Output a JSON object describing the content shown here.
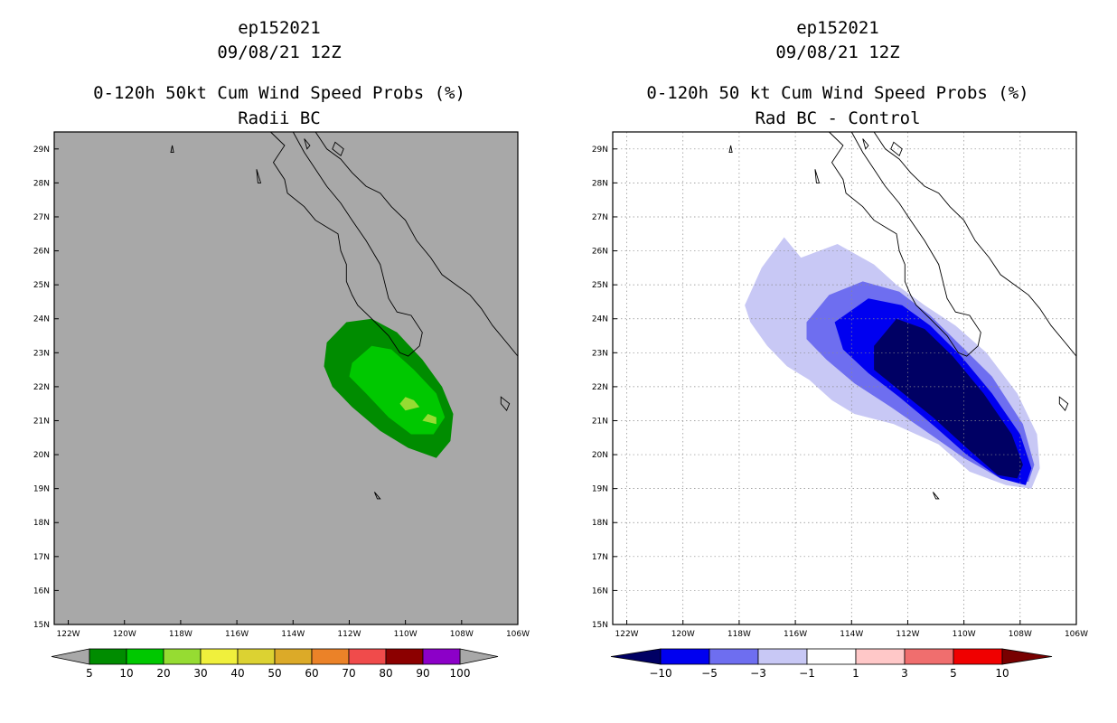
{
  "panels": [
    {
      "storm_id": "ep152021",
      "datetime": "09/08/21 12Z",
      "title": "0-120h 50kt Cum Wind Speed Probs (%)",
      "subtitle": "Radii BC",
      "background": "#a8a8a8",
      "gridlines": false,
      "lat_labels": [
        "29N",
        "28N",
        "27N",
        "26N",
        "25N",
        "24N",
        "23N",
        "22N",
        "21N",
        "20N",
        "19N",
        "18N",
        "17N",
        "16N",
        "15N"
      ],
      "lon_labels": [
        "122W",
        "120W",
        "118W",
        "116W",
        "114W",
        "112W",
        "110W",
        "108W",
        "106W"
      ],
      "colorbar": {
        "labels": [
          "5",
          "10",
          "20",
          "30",
          "40",
          "50",
          "60",
          "70",
          "80",
          "90",
          "100"
        ],
        "colors": [
          "#008c00",
          "#00c800",
          "#96dc32",
          "#f0f03c",
          "#dcd232",
          "#dcaa28",
          "#eb8228",
          "#f04b4b",
          "#8c0000",
          "#8c00c8"
        ],
        "end_arrow_color": "#a8a8a8"
      }
    },
    {
      "storm_id": "ep152021",
      "datetime": "09/08/21 12Z",
      "title": "0-120h 50 kt Cum Wind Speed Probs (%)",
      "subtitle": "Rad BC - Control",
      "background": "#ffffff",
      "gridlines": true,
      "lat_labels": [
        "29N",
        "28N",
        "27N",
        "26N",
        "25N",
        "24N",
        "23N",
        "22N",
        "21N",
        "20N",
        "19N",
        "18N",
        "17N",
        "16N",
        "15N"
      ],
      "lon_labels": [
        "122W",
        "120W",
        "118W",
        "116W",
        "114W",
        "112W",
        "110W",
        "108W",
        "106W"
      ],
      "colorbar": {
        "labels": [
          "−10",
          "−5",
          "−3",
          "−1",
          "1",
          "3",
          "5",
          "10"
        ],
        "colors": [
          "#000064",
          "#0000f0",
          "#6e6ef0",
          "#c8c8f5",
          "#ffffff",
          "#ffc8c8",
          "#f06e6e",
          "#f00000",
          "#780000"
        ]
      }
    }
  ],
  "map_data": {
    "lon_range": [
      -122.5,
      -106
    ],
    "lat_range": [
      15,
      29.5
    ],
    "left_contours": [
      {
        "level": "5-10%",
        "color": "#008c00",
        "poly": [
          [
            -112.8,
            23.3
          ],
          [
            -112.1,
            23.9
          ],
          [
            -111.2,
            24.0
          ],
          [
            -110.3,
            23.6
          ],
          [
            -109.4,
            22.8
          ],
          [
            -108.7,
            22.0
          ],
          [
            -108.3,
            21.2
          ],
          [
            -108.4,
            20.4
          ],
          [
            -108.9,
            19.9
          ],
          [
            -109.9,
            20.2
          ],
          [
            -110.9,
            20.7
          ],
          [
            -111.9,
            21.4
          ],
          [
            -112.6,
            22.0
          ],
          [
            -112.9,
            22.6
          ]
        ]
      },
      {
        "level": "10-20%",
        "color": "#00c800",
        "poly": [
          [
            -111.9,
            22.7
          ],
          [
            -111.2,
            23.2
          ],
          [
            -110.5,
            23.1
          ],
          [
            -109.7,
            22.5
          ],
          [
            -108.9,
            21.8
          ],
          [
            -108.6,
            21.1
          ],
          [
            -109.0,
            20.6
          ],
          [
            -109.8,
            20.6
          ],
          [
            -110.6,
            21.1
          ],
          [
            -111.4,
            21.8
          ],
          [
            -112.0,
            22.3
          ]
        ]
      },
      {
        "level": "20-30%",
        "color": "#96dc32",
        "poly": [
          [
            -110.0,
            21.7
          ],
          [
            -109.7,
            21.6
          ],
          [
            -109.5,
            21.4
          ],
          [
            -110.0,
            21.3
          ],
          [
            -110.2,
            21.5
          ]
        ]
      },
      {
        "level": "20-30%",
        "color": "#96dc32",
        "poly": [
          [
            -109.2,
            21.2
          ],
          [
            -108.9,
            21.1
          ],
          [
            -108.9,
            20.9
          ],
          [
            -109.4,
            21.0
          ]
        ]
      }
    ],
    "right_contours": [
      {
        "level": "-3 to -1",
        "color": "#c8c8f5",
        "poly": [
          [
            -117.8,
            24.4
          ],
          [
            -117.2,
            25.5
          ],
          [
            -116.4,
            26.4
          ],
          [
            -115.8,
            25.8
          ],
          [
            -114.5,
            26.2
          ],
          [
            -113.2,
            25.6
          ],
          [
            -112.4,
            25.0
          ],
          [
            -111.4,
            24.4
          ],
          [
            -110.3,
            23.8
          ],
          [
            -109.2,
            23.0
          ],
          [
            -108.1,
            21.8
          ],
          [
            -107.4,
            20.6
          ],
          [
            -107.3,
            19.6
          ],
          [
            -107.6,
            19.0
          ],
          [
            -108.5,
            19.1
          ],
          [
            -109.8,
            19.5
          ],
          [
            -110.9,
            20.3
          ],
          [
            -112.5,
            20.9
          ],
          [
            -113.9,
            21.2
          ],
          [
            -114.7,
            21.6
          ],
          [
            -115.5,
            22.2
          ],
          [
            -116.3,
            22.6
          ],
          [
            -117.0,
            23.2
          ],
          [
            -117.6,
            23.9
          ]
        ]
      },
      {
        "level": "-5 to -3",
        "color": "#6e6ef0",
        "poly": [
          [
            -115.6,
            23.9
          ],
          [
            -114.8,
            24.7
          ],
          [
            -113.6,
            25.1
          ],
          [
            -112.3,
            24.8
          ],
          [
            -111.2,
            24.1
          ],
          [
            -110.1,
            23.2
          ],
          [
            -109.0,
            22.3
          ],
          [
            -107.9,
            20.9
          ],
          [
            -107.5,
            19.7
          ],
          [
            -107.7,
            19.2
          ],
          [
            -108.7,
            19.3
          ],
          [
            -110.0,
            19.9
          ],
          [
            -111.2,
            20.6
          ],
          [
            -112.6,
            21.4
          ],
          [
            -113.9,
            22.1
          ],
          [
            -114.9,
            22.8
          ],
          [
            -115.6,
            23.4
          ]
        ]
      },
      {
        "level": "-10 to -5",
        "color": "#0000f0",
        "poly": [
          [
            -114.6,
            23.9
          ],
          [
            -113.4,
            24.6
          ],
          [
            -112.2,
            24.4
          ],
          [
            -111.2,
            23.8
          ],
          [
            -110.1,
            22.9
          ],
          [
            -109.0,
            21.8
          ],
          [
            -108.0,
            20.6
          ],
          [
            -107.6,
            19.6
          ],
          [
            -107.8,
            19.1
          ],
          [
            -108.7,
            19.3
          ],
          [
            -109.9,
            20.0
          ],
          [
            -111.0,
            20.8
          ],
          [
            -112.3,
            21.7
          ],
          [
            -113.4,
            22.4
          ],
          [
            -114.3,
            23.1
          ]
        ]
      },
      {
        "level": "< -10",
        "color": "#000064",
        "poly": [
          [
            -113.2,
            23.2
          ],
          [
            -112.4,
            24.0
          ],
          [
            -111.4,
            23.7
          ],
          [
            -110.4,
            22.9
          ],
          [
            -109.3,
            21.8
          ],
          [
            -108.3,
            20.6
          ],
          [
            -107.9,
            19.7
          ],
          [
            -108.1,
            19.3
          ],
          [
            -108.8,
            19.4
          ],
          [
            -109.9,
            20.2
          ],
          [
            -111.1,
            21.1
          ],
          [
            -112.3,
            21.9
          ],
          [
            -113.2,
            22.5
          ]
        ]
      }
    ],
    "baja_coast": [
      [
        -114.8,
        29.5
      ],
      [
        -114.3,
        29.1
      ],
      [
        -114.7,
        28.6
      ],
      [
        -114.3,
        28.1
      ],
      [
        -114.2,
        27.7
      ],
      [
        -113.6,
        27.3
      ],
      [
        -113.2,
        26.9
      ],
      [
        -112.4,
        26.5
      ],
      [
        -112.3,
        26.0
      ],
      [
        -112.1,
        25.6
      ],
      [
        -112.1,
        25.1
      ],
      [
        -111.9,
        24.7
      ],
      [
        -111.7,
        24.4
      ],
      [
        -111.2,
        24.0
      ],
      [
        -110.6,
        23.5
      ],
      [
        -110.2,
        23.0
      ],
      [
        -109.9,
        22.9
      ],
      [
        -109.5,
        23.2
      ],
      [
        -109.4,
        23.6
      ],
      [
        -109.8,
        24.1
      ],
      [
        -110.3,
        24.2
      ],
      [
        -110.6,
        24.6
      ],
      [
        -110.9,
        25.6
      ],
      [
        -111.4,
        26.3
      ],
      [
        -111.9,
        26.9
      ],
      [
        -112.3,
        27.4
      ],
      [
        -112.8,
        27.9
      ],
      [
        -113.2,
        28.4
      ],
      [
        -113.6,
        28.9
      ],
      [
        -114.0,
        29.5
      ]
    ],
    "mainland_coast": [
      [
        -113.2,
        29.5
      ],
      [
        -112.8,
        29.0
      ],
      [
        -112.3,
        28.7
      ],
      [
        -111.9,
        28.3
      ],
      [
        -111.4,
        27.9
      ],
      [
        -110.9,
        27.7
      ],
      [
        -110.5,
        27.3
      ],
      [
        -110.0,
        26.9
      ],
      [
        -109.6,
        26.3
      ],
      [
        -109.1,
        25.8
      ],
      [
        -108.7,
        25.3
      ],
      [
        -108.2,
        25.0
      ],
      [
        -107.7,
        24.7
      ],
      [
        -107.3,
        24.3
      ],
      [
        -106.9,
        23.8
      ],
      [
        -106.4,
        23.3
      ],
      [
        -106.0,
        22.9
      ]
    ],
    "islands": [
      {
        "name": "isla-angel",
        "poly": [
          [
            -113.6,
            29.3
          ],
          [
            -113.5,
            29.0
          ],
          [
            -113.4,
            29.1
          ]
        ]
      },
      {
        "name": "isla-tiburon",
        "poly": [
          [
            -112.5,
            29.2
          ],
          [
            -112.2,
            29.0
          ],
          [
            -112.3,
            28.8
          ],
          [
            -112.6,
            29.0
          ]
        ]
      },
      {
        "name": "guadalupe",
        "poly": [
          [
            -118.3,
            29.1
          ],
          [
            -118.25,
            28.9
          ],
          [
            -118.35,
            28.9
          ]
        ]
      },
      {
        "name": "cedros",
        "poly": [
          [
            -115.3,
            28.4
          ],
          [
            -115.15,
            28.0
          ],
          [
            -115.25,
            28.0
          ]
        ]
      },
      {
        "name": "tres-marias",
        "poly": [
          [
            -106.6,
            21.7
          ],
          [
            -106.3,
            21.5
          ],
          [
            -106.4,
            21.3
          ],
          [
            -106.6,
            21.5
          ]
        ]
      },
      {
        "name": "socorro",
        "poly": [
          [
            -111.1,
            18.9
          ],
          [
            -110.9,
            18.7
          ],
          [
            -111.0,
            18.7
          ]
        ]
      }
    ]
  }
}
